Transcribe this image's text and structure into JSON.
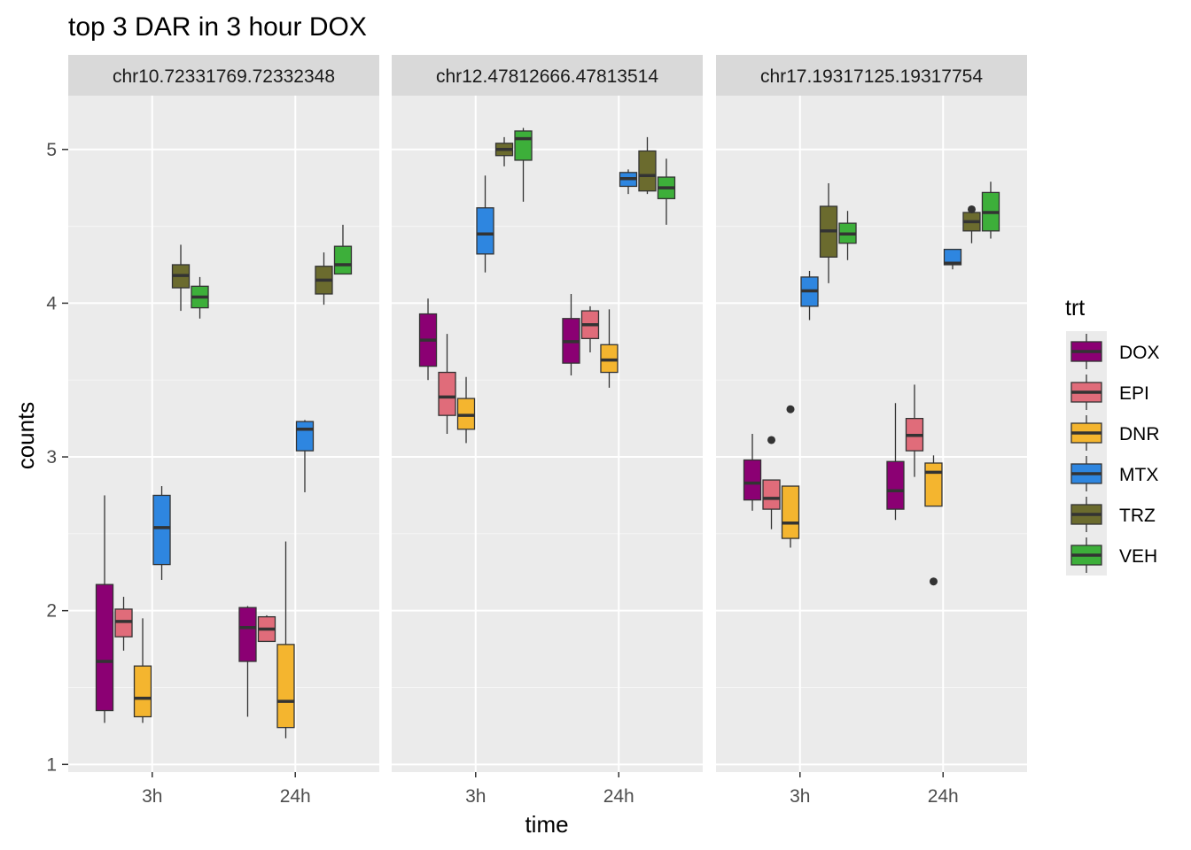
{
  "chart_data": {
    "type": "boxplot",
    "title": "top 3 DAR in 3 hour DOX",
    "xlabel": "time",
    "ylabel": "counts",
    "ylim": [
      0.95,
      5.35
    ],
    "yticks": [
      1,
      2,
      3,
      4,
      5
    ],
    "categories": [
      "3h",
      "24h"
    ],
    "legend": {
      "title": "trt",
      "position": "right",
      "entries": [
        {
          "name": "DOX",
          "color": "#8B0073"
        },
        {
          "name": "EPI",
          "color": "#E06C7A"
        },
        {
          "name": "DNR",
          "color": "#F4B52F"
        },
        {
          "name": "MTX",
          "color": "#2E86E0"
        },
        {
          "name": "TRZ",
          "color": "#6B6B2E"
        },
        {
          "name": "VEH",
          "color": "#3DAF3A"
        }
      ]
    },
    "panels": [
      {
        "label": "chr10.72331769.72332348",
        "groups": [
          {
            "time": "3h",
            "boxes": [
              {
                "trt": "DOX",
                "lo": 1.27,
                "q1": 1.35,
                "med": 1.67,
                "q3": 2.17,
                "hi": 2.75,
                "out": []
              },
              {
                "trt": "EPI",
                "lo": 1.74,
                "q1": 1.83,
                "med": 1.93,
                "q3": 2.01,
                "hi": 2.09,
                "out": []
              },
              {
                "trt": "DNR",
                "lo": 1.27,
                "q1": 1.31,
                "med": 1.43,
                "q3": 1.64,
                "hi": 1.95,
                "out": []
              },
              {
                "trt": "MTX",
                "lo": 2.2,
                "q1": 2.3,
                "med": 2.54,
                "q3": 2.75,
                "hi": 2.81,
                "out": []
              },
              {
                "trt": "TRZ",
                "lo": 3.95,
                "q1": 4.1,
                "med": 4.18,
                "q3": 4.25,
                "hi": 4.38,
                "out": []
              },
              {
                "trt": "VEH",
                "lo": 3.9,
                "q1": 3.97,
                "med": 4.04,
                "q3": 4.11,
                "hi": 4.17,
                "out": []
              }
            ]
          },
          {
            "time": "24h",
            "boxes": [
              {
                "trt": "DOX",
                "lo": 1.31,
                "q1": 1.67,
                "med": 1.89,
                "q3": 2.02,
                "hi": 2.03,
                "out": []
              },
              {
                "trt": "EPI",
                "lo": 1.8,
                "q1": 1.8,
                "med": 1.88,
                "q3": 1.96,
                "hi": 1.97,
                "out": []
              },
              {
                "trt": "DNR",
                "lo": 1.17,
                "q1": 1.24,
                "med": 1.41,
                "q3": 1.78,
                "hi": 2.45,
                "out": []
              },
              {
                "trt": "MTX",
                "lo": 2.77,
                "q1": 3.04,
                "med": 3.18,
                "q3": 3.23,
                "hi": 3.24,
                "out": []
              },
              {
                "trt": "TRZ",
                "lo": 3.99,
                "q1": 4.06,
                "med": 4.15,
                "q3": 4.24,
                "hi": 4.33,
                "out": []
              },
              {
                "trt": "VEH",
                "lo": 4.19,
                "q1": 4.19,
                "med": 4.25,
                "q3": 4.37,
                "hi": 4.51,
                "out": []
              }
            ]
          }
        ]
      },
      {
        "label": "chr12.47812666.47813514",
        "groups": [
          {
            "time": "3h",
            "boxes": [
              {
                "trt": "DOX",
                "lo": 3.5,
                "q1": 3.59,
                "med": 3.76,
                "q3": 3.93,
                "hi": 4.03,
                "out": []
              },
              {
                "trt": "EPI",
                "lo": 3.15,
                "q1": 3.27,
                "med": 3.39,
                "q3": 3.55,
                "hi": 3.8,
                "out": []
              },
              {
                "trt": "DNR",
                "lo": 3.09,
                "q1": 3.18,
                "med": 3.27,
                "q3": 3.38,
                "hi": 3.52,
                "out": []
              },
              {
                "trt": "MTX",
                "lo": 4.2,
                "q1": 4.32,
                "med": 4.45,
                "q3": 4.62,
                "hi": 4.83,
                "out": []
              },
              {
                "trt": "TRZ",
                "lo": 4.89,
                "q1": 4.96,
                "med": 5.0,
                "q3": 5.04,
                "hi": 5.08,
                "out": []
              },
              {
                "trt": "VEH",
                "lo": 4.66,
                "q1": 4.93,
                "med": 5.07,
                "q3": 5.12,
                "hi": 5.14,
                "out": []
              }
            ]
          },
          {
            "time": "24h",
            "boxes": [
              {
                "trt": "DOX",
                "lo": 3.53,
                "q1": 3.61,
                "med": 3.75,
                "q3": 3.9,
                "hi": 4.06,
                "out": []
              },
              {
                "trt": "EPI",
                "lo": 3.68,
                "q1": 3.77,
                "med": 3.86,
                "q3": 3.95,
                "hi": 3.98,
                "out": []
              },
              {
                "trt": "DNR",
                "lo": 3.45,
                "q1": 3.55,
                "med": 3.63,
                "q3": 3.73,
                "hi": 3.96,
                "out": []
              },
              {
                "trt": "MTX",
                "lo": 4.71,
                "q1": 4.76,
                "med": 4.81,
                "q3": 4.85,
                "hi": 4.87,
                "out": []
              },
              {
                "trt": "TRZ",
                "lo": 4.71,
                "q1": 4.73,
                "med": 4.83,
                "q3": 4.99,
                "hi": 5.08,
                "out": []
              },
              {
                "trt": "VEH",
                "lo": 4.51,
                "q1": 4.68,
                "med": 4.75,
                "q3": 4.82,
                "hi": 4.94,
                "out": []
              }
            ]
          }
        ]
      },
      {
        "label": "chr17.19317125.19317754",
        "groups": [
          {
            "time": "3h",
            "boxes": [
              {
                "trt": "DOX",
                "lo": 2.65,
                "q1": 2.72,
                "med": 2.83,
                "q3": 2.98,
                "hi": 3.15,
                "out": []
              },
              {
                "trt": "EPI",
                "lo": 2.53,
                "q1": 2.66,
                "med": 2.73,
                "q3": 2.85,
                "hi": 2.85,
                "out": [
                  3.11
                ]
              },
              {
                "trt": "DNR",
                "lo": 2.41,
                "q1": 2.47,
                "med": 2.57,
                "q3": 2.81,
                "hi": 2.81,
                "out": [
                  3.31
                ]
              },
              {
                "trt": "MTX",
                "lo": 3.89,
                "q1": 3.98,
                "med": 4.08,
                "q3": 4.17,
                "hi": 4.21,
                "out": []
              },
              {
                "trt": "TRZ",
                "lo": 4.13,
                "q1": 4.3,
                "med": 4.47,
                "q3": 4.63,
                "hi": 4.78,
                "out": []
              },
              {
                "trt": "VEH",
                "lo": 4.28,
                "q1": 4.39,
                "med": 4.45,
                "q3": 4.52,
                "hi": 4.6,
                "out": []
              }
            ]
          },
          {
            "time": "24h",
            "boxes": [
              {
                "trt": "DOX",
                "lo": 2.59,
                "q1": 2.66,
                "med": 2.78,
                "q3": 2.97,
                "hi": 3.35,
                "out": []
              },
              {
                "trt": "EPI",
                "lo": 2.87,
                "q1": 3.04,
                "med": 3.14,
                "q3": 3.25,
                "hi": 3.47,
                "out": []
              },
              {
                "trt": "DNR",
                "lo": 2.68,
                "q1": 2.68,
                "med": 2.9,
                "q3": 2.96,
                "hi": 3.01,
                "out": [
                  2.19
                ]
              },
              {
                "trt": "MTX",
                "lo": 4.22,
                "q1": 4.25,
                "med": 4.26,
                "q3": 4.35,
                "hi": 4.35,
                "out": []
              },
              {
                "trt": "TRZ",
                "lo": 4.39,
                "q1": 4.47,
                "med": 4.53,
                "q3": 4.59,
                "hi": 4.61,
                "out": [
                  4.61
                ]
              },
              {
                "trt": "VEH",
                "lo": 4.42,
                "q1": 4.47,
                "med": 4.59,
                "q3": 4.72,
                "hi": 4.79,
                "out": []
              }
            ]
          }
        ]
      }
    ]
  }
}
